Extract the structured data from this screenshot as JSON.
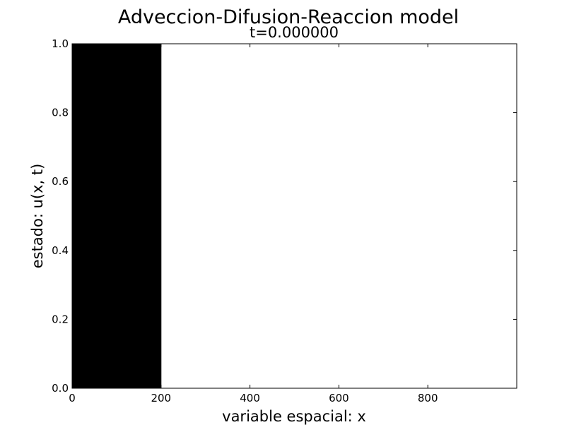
{
  "chart_data": {
    "type": "area",
    "title": "Adveccion-Difusion-Reaccion model",
    "subtitle": "t=0.000000",
    "xlabel": "variable espacial: x",
    "ylabel": "estado: u(x, t)",
    "xlim": [
      0,
      1000
    ],
    "ylim": [
      0,
      1.0
    ],
    "xticks": [
      0,
      200,
      400,
      600,
      800
    ],
    "xtick_labels": [
      "0",
      "200",
      "400",
      "600",
      "800"
    ],
    "yticks": [
      0.0,
      0.2,
      0.4,
      0.6,
      0.8,
      1.0
    ],
    "ytick_labels": [
      "0.0",
      "0.2",
      "0.4",
      "0.6",
      "0.8",
      "1.0"
    ],
    "grid": false,
    "series": [
      {
        "x": [
          0,
          200,
          200,
          1000
        ],
        "y": [
          1.0,
          1.0,
          0.0,
          0.0
        ],
        "fill": "#000000"
      }
    ]
  }
}
